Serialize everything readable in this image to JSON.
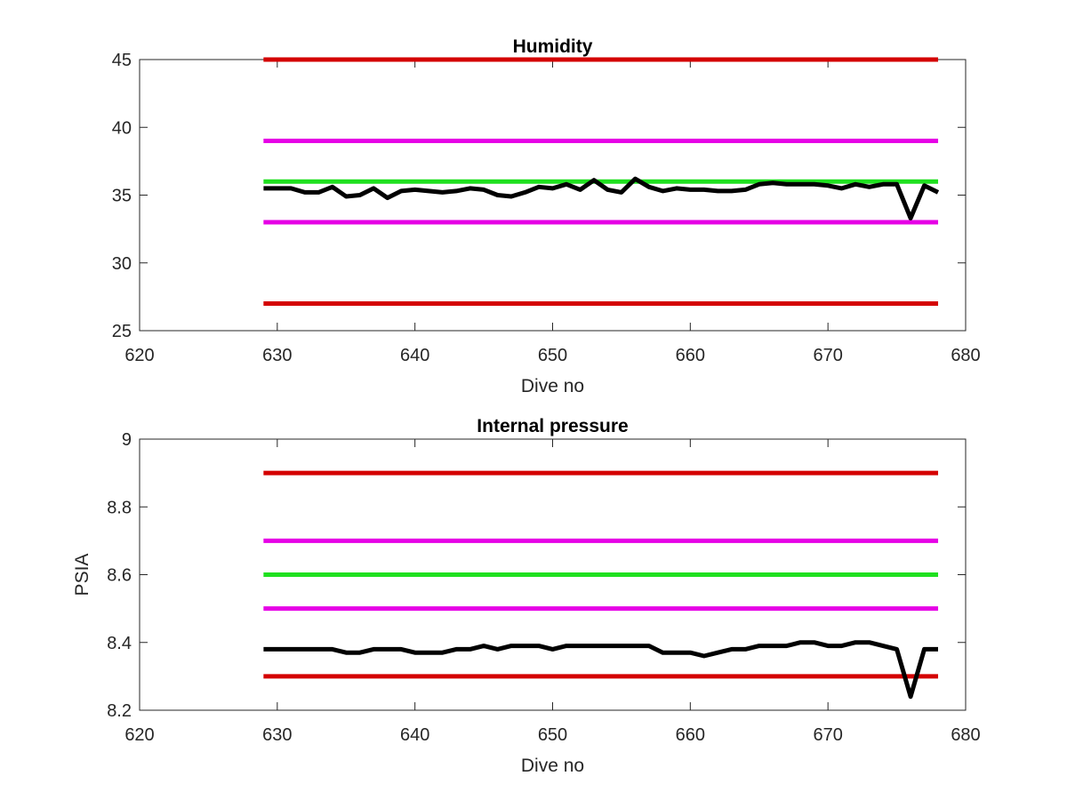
{
  "chart_data": [
    {
      "type": "line",
      "title": "Humidity",
      "xlabel": "Dive no",
      "ylabel": "",
      "xlim": [
        620,
        680
      ],
      "ylim": [
        25,
        45
      ],
      "xticks": [
        620,
        630,
        640,
        650,
        660,
        670,
        680
      ],
      "yticks": [
        25,
        30,
        35,
        40,
        45
      ],
      "grid": false,
      "threshold_lines": [
        {
          "value": 45,
          "x_range": [
            629,
            678
          ],
          "color": "#d40000"
        },
        {
          "value": 39,
          "x_range": [
            629,
            678
          ],
          "color": "#e600e6"
        },
        {
          "value": 36,
          "x_range": [
            629,
            678
          ],
          "color": "#1fe01f"
        },
        {
          "value": 33,
          "x_range": [
            629,
            678
          ],
          "color": "#e600e6"
        },
        {
          "value": 27,
          "x_range": [
            629,
            678
          ],
          "color": "#d40000"
        }
      ],
      "series": [
        {
          "color": "#000000",
          "x": [
            629,
            630,
            631,
            632,
            633,
            634,
            635,
            636,
            637,
            638,
            639,
            640,
            641,
            642,
            643,
            644,
            645,
            646,
            647,
            648,
            649,
            650,
            651,
            652,
            653,
            654,
            655,
            656,
            657,
            658,
            659,
            660,
            661,
            662,
            663,
            664,
            665,
            666,
            667,
            668,
            669,
            670,
            671,
            672,
            673,
            674,
            675,
            676,
            677,
            678
          ],
          "y": [
            35.5,
            35.5,
            35.5,
            35.2,
            35.2,
            35.6,
            34.9,
            35.0,
            35.5,
            34.8,
            35.3,
            35.4,
            35.3,
            35.2,
            35.3,
            35.5,
            35.4,
            35.0,
            34.9,
            35.2,
            35.6,
            35.5,
            35.8,
            35.4,
            36.1,
            35.4,
            35.2,
            36.2,
            35.6,
            35.3,
            35.5,
            35.4,
            35.4,
            35.3,
            35.3,
            35.4,
            35.8,
            35.9,
            35.8,
            35.8,
            35.8,
            35.7,
            35.5,
            35.8,
            35.6,
            35.8,
            35.8,
            33.3,
            35.7,
            35.2
          ]
        }
      ]
    },
    {
      "type": "line",
      "title": "Internal pressure",
      "xlabel": "Dive no",
      "ylabel": "PSIA",
      "xlim": [
        620,
        680
      ],
      "ylim": [
        8.2,
        9.0
      ],
      "xticks": [
        620,
        630,
        640,
        650,
        660,
        670,
        680
      ],
      "yticks": [
        8.2,
        8.4,
        8.6,
        8.8,
        9.0
      ],
      "ytick_labels": [
        "8.2",
        "8.4",
        "8.6",
        "8.8",
        "9"
      ],
      "grid": false,
      "threshold_lines": [
        {
          "value": 8.9,
          "x_range": [
            629,
            678
          ],
          "color": "#d40000"
        },
        {
          "value": 8.7,
          "x_range": [
            629,
            678
          ],
          "color": "#e600e6"
        },
        {
          "value": 8.6,
          "x_range": [
            629,
            678
          ],
          "color": "#1fe01f"
        },
        {
          "value": 8.5,
          "x_range": [
            629,
            678
          ],
          "color": "#e600e6"
        },
        {
          "value": 8.3,
          "x_range": [
            629,
            678
          ],
          "color": "#d40000"
        }
      ],
      "series": [
        {
          "color": "#000000",
          "x": [
            629,
            630,
            631,
            632,
            633,
            634,
            635,
            636,
            637,
            638,
            639,
            640,
            641,
            642,
            643,
            644,
            645,
            646,
            647,
            648,
            649,
            650,
            651,
            652,
            653,
            654,
            655,
            656,
            657,
            658,
            659,
            660,
            661,
            662,
            663,
            664,
            665,
            666,
            667,
            668,
            669,
            670,
            671,
            672,
            673,
            674,
            675,
            676,
            677,
            678
          ],
          "y": [
            8.38,
            8.38,
            8.38,
            8.38,
            8.38,
            8.38,
            8.37,
            8.37,
            8.38,
            8.38,
            8.38,
            8.37,
            8.37,
            8.37,
            8.38,
            8.38,
            8.39,
            8.38,
            8.39,
            8.39,
            8.39,
            8.38,
            8.39,
            8.39,
            8.39,
            8.39,
            8.39,
            8.39,
            8.39,
            8.37,
            8.37,
            8.37,
            8.36,
            8.37,
            8.38,
            8.38,
            8.39,
            8.39,
            8.39,
            8.4,
            8.4,
            8.39,
            8.39,
            8.4,
            8.4,
            8.39,
            8.38,
            8.24,
            8.38,
            8.38
          ]
        }
      ]
    }
  ]
}
